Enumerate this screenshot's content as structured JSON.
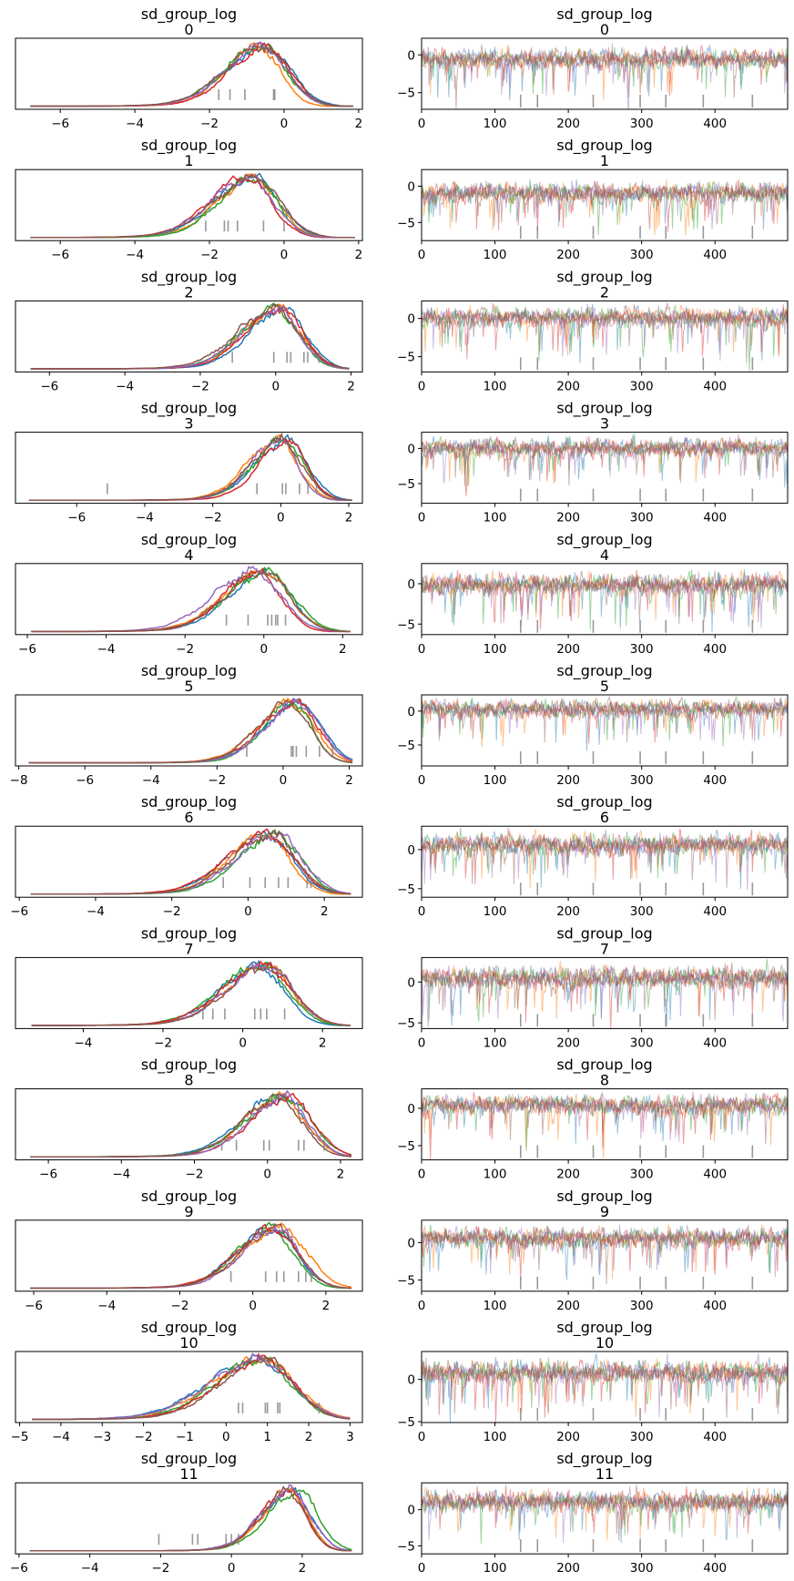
{
  "figure": {
    "colors": [
      "#1f77b4",
      "#ff7f0e",
      "#2ca02c",
      "#d62728",
      "#9467bd",
      "#8c564b"
    ],
    "rug_color": "#7f7f7f"
  },
  "chart_data": [
    {
      "type": "line",
      "kind": "density",
      "title": "sd_group_log",
      "subtitle": "0",
      "xlim": [
        -7.2,
        2.1
      ],
      "xticks": [
        -6,
        -4,
        -2,
        0,
        2
      ],
      "ylim": [
        0,
        1
      ],
      "mode": -0.55,
      "spread": 0.75,
      "left_tail": -6.8,
      "right_tail": 1.85,
      "rug": [
        -1.75,
        -1.45,
        -1.05,
        -0.25,
        -0.28
      ],
      "series_count": 6
    },
    {
      "type": "line",
      "kind": "trace",
      "title": "sd_group_log",
      "subtitle": "0",
      "xlim": [
        0,
        499
      ],
      "xticks": [
        0,
        100,
        200,
        300,
        400
      ],
      "ylim": [
        -7.2,
        2.2
      ],
      "yticks": [
        0,
        -5
      ],
      "center": -0.55,
      "noise": 1.0,
      "rug": [
        135,
        158,
        234,
        298,
        333,
        384,
        451
      ],
      "series_count": 6
    },
    {
      "type": "line",
      "kind": "density",
      "title": "sd_group_log",
      "subtitle": "1",
      "xlim": [
        -7.2,
        2.1
      ],
      "xticks": [
        -6,
        -4,
        -2,
        0,
        2
      ],
      "ylim": [
        0,
        1
      ],
      "mode": -0.9,
      "spread": 0.8,
      "left_tail": -6.8,
      "right_tail": 1.9,
      "rug": [
        -2.1,
        -1.6,
        -1.5,
        -1.25,
        -0.55,
        0.0
      ],
      "series_count": 6
    },
    {
      "type": "line",
      "kind": "trace",
      "title": "sd_group_log",
      "subtitle": "1",
      "xlim": [
        0,
        499
      ],
      "xticks": [
        0,
        100,
        200,
        300,
        400
      ],
      "ylim": [
        -7.5,
        2.3
      ],
      "yticks": [
        0,
        -5
      ],
      "center": -0.9,
      "noise": 1.05,
      "rug": [
        135,
        158,
        234,
        298,
        333,
        384,
        451
      ],
      "series_count": 6
    },
    {
      "type": "line",
      "kind": "density",
      "title": "sd_group_log",
      "subtitle": "2",
      "xlim": [
        -6.9,
        2.3
      ],
      "xticks": [
        -6,
        -4,
        -2,
        0,
        2
      ],
      "ylim": [
        0,
        1
      ],
      "mode": 0.1,
      "spread": 0.75,
      "left_tail": -6.5,
      "right_tail": 1.95,
      "rug": [
        -1.15,
        -0.05,
        0.3,
        0.4,
        0.75,
        0.85,
        1.15
      ],
      "series_count": 6
    },
    {
      "type": "line",
      "kind": "trace",
      "title": "sd_group_log",
      "subtitle": "2",
      "xlim": [
        0,
        499
      ],
      "xticks": [
        0,
        100,
        200,
        300,
        400
      ],
      "ylim": [
        -7.0,
        2.3
      ],
      "yticks": [
        0,
        -5
      ],
      "center": 0.1,
      "noise": 1.0,
      "rug": [
        135,
        158,
        234,
        298,
        333,
        384,
        451
      ],
      "series_count": 6
    },
    {
      "type": "line",
      "kind": "density",
      "title": "sd_group_log",
      "subtitle": "3",
      "xlim": [
        -7.8,
        2.4
      ],
      "xticks": [
        -6,
        -4,
        -2,
        0,
        2
      ],
      "ylim": [
        0,
        1
      ],
      "mode": 0.05,
      "spread": 0.7,
      "left_tail": -7.4,
      "right_tail": 2.1,
      "rug": [
        -5.1,
        -0.7,
        0.05,
        0.15,
        0.55,
        0.8,
        1.05
      ],
      "series_count": 6
    },
    {
      "type": "line",
      "kind": "trace",
      "title": "sd_group_log",
      "subtitle": "3",
      "xlim": [
        0,
        499
      ],
      "xticks": [
        0,
        100,
        200,
        300,
        400
      ],
      "ylim": [
        -7.8,
        2.3
      ],
      "yticks": [
        0,
        -5
      ],
      "center": 0.05,
      "noise": 1.0,
      "rug": [
        135,
        158,
        234,
        298,
        333,
        384,
        451
      ],
      "series_count": 6
    },
    {
      "type": "line",
      "kind": "density",
      "title": "sd_group_log",
      "subtitle": "4",
      "xlim": [
        -6.3,
        2.5
      ],
      "xticks": [
        -6,
        -4,
        -2,
        0,
        2
      ],
      "ylim": [
        0,
        1
      ],
      "mode": -0.1,
      "spread": 0.75,
      "left_tail": -5.9,
      "right_tail": 2.2,
      "rug": [
        -0.95,
        -0.4,
        0.1,
        0.2,
        0.3,
        0.35,
        0.55
      ],
      "series_count": 6
    },
    {
      "type": "line",
      "kind": "trace",
      "title": "sd_group_log",
      "subtitle": "4",
      "xlim": [
        0,
        499
      ],
      "xticks": [
        0,
        100,
        200,
        300,
        400
      ],
      "ylim": [
        -6.3,
        2.5
      ],
      "yticks": [
        0,
        -5
      ],
      "center": -0.1,
      "noise": 1.0,
      "rug": [
        135,
        158,
        234,
        298,
        333,
        384,
        451
      ],
      "series_count": 6
    },
    {
      "type": "line",
      "kind": "density",
      "title": "sd_group_log",
      "subtitle": "5",
      "xlim": [
        -8.1,
        2.4
      ],
      "xticks": [
        -8,
        -6,
        -4,
        -2,
        0,
        2
      ],
      "ylim": [
        0,
        1
      ],
      "mode": 0.3,
      "spread": 0.75,
      "left_tail": -7.7,
      "right_tail": 2.1,
      "rug": [
        -1.1,
        0.25,
        0.3,
        0.4,
        0.7,
        1.1,
        1.5
      ],
      "series_count": 6
    },
    {
      "type": "line",
      "kind": "trace",
      "title": "sd_group_log",
      "subtitle": "5",
      "xlim": [
        0,
        499
      ],
      "xticks": [
        0,
        100,
        200,
        300,
        400
      ],
      "ylim": [
        -8.1,
        2.4
      ],
      "yticks": [
        0,
        -5
      ],
      "center": 0.3,
      "noise": 1.0,
      "rug": [
        135,
        158,
        234,
        298,
        333,
        384,
        451
      ],
      "series_count": 6
    },
    {
      "type": "line",
      "kind": "density",
      "title": "sd_group_log",
      "subtitle": "6",
      "xlim": [
        -6.1,
        3.0
      ],
      "xticks": [
        -6,
        -4,
        -2,
        0,
        2
      ],
      "ylim": [
        0,
        1
      ],
      "mode": 0.6,
      "spread": 0.8,
      "left_tail": -5.7,
      "right_tail": 2.7,
      "rug": [
        -0.65,
        0.05,
        0.45,
        0.8,
        1.05,
        1.55,
        1.65
      ],
      "series_count": 6
    },
    {
      "type": "line",
      "kind": "trace",
      "title": "sd_group_log",
      "subtitle": "6",
      "xlim": [
        0,
        499
      ],
      "xticks": [
        0,
        100,
        200,
        300,
        400
      ],
      "ylim": [
        -6.1,
        3.0
      ],
      "yticks": [
        0,
        -5
      ],
      "center": 0.6,
      "noise": 1.0,
      "rug": [
        135,
        158,
        234,
        298,
        333,
        384,
        451
      ],
      "series_count": 6
    },
    {
      "type": "line",
      "kind": "density",
      "title": "sd_group_log",
      "subtitle": "7",
      "xlim": [
        -5.7,
        3.0
      ],
      "xticks": [
        -4,
        -2,
        0,
        2
      ],
      "ylim": [
        0,
        1
      ],
      "mode": 0.5,
      "spread": 0.8,
      "left_tail": -5.3,
      "right_tail": 2.7,
      "rug": [
        -1.0,
        -0.75,
        -0.45,
        0.3,
        0.45,
        0.6,
        1.05
      ],
      "series_count": 6
    },
    {
      "type": "line",
      "kind": "trace",
      "title": "sd_group_log",
      "subtitle": "7",
      "xlim": [
        0,
        499
      ],
      "xticks": [
        0,
        100,
        200,
        300,
        400
      ],
      "ylim": [
        -5.7,
        3.0
      ],
      "yticks": [
        0,
        -5
      ],
      "center": 0.5,
      "noise": 1.0,
      "rug": [
        135,
        158,
        234,
        298,
        333,
        384,
        451
      ],
      "series_count": 6
    },
    {
      "type": "line",
      "kind": "density",
      "title": "sd_group_log",
      "subtitle": "8",
      "xlim": [
        -6.9,
        2.6
      ],
      "xticks": [
        -6,
        -4,
        -2,
        0,
        2
      ],
      "ylim": [
        0,
        1
      ],
      "mode": 0.4,
      "spread": 0.8,
      "left_tail": -6.5,
      "right_tail": 2.3,
      "rug": [
        -1.25,
        -0.85,
        -0.1,
        0.05,
        0.85,
        1.0,
        1.55
      ],
      "series_count": 6
    },
    {
      "type": "line",
      "kind": "trace",
      "title": "sd_group_log",
      "subtitle": "8",
      "xlim": [
        0,
        499
      ],
      "xticks": [
        0,
        100,
        200,
        300,
        400
      ],
      "ylim": [
        -6.9,
        2.6
      ],
      "yticks": [
        0,
        -5
      ],
      "center": 0.4,
      "noise": 1.0,
      "rug": [
        135,
        158,
        234,
        298,
        333,
        384,
        451
      ],
      "series_count": 6
    },
    {
      "type": "line",
      "kind": "density",
      "title": "sd_group_log",
      "subtitle": "9",
      "xlim": [
        -6.5,
        3.0
      ],
      "xticks": [
        -6,
        -4,
        -2,
        0,
        2
      ],
      "ylim": [
        0,
        1
      ],
      "mode": 0.6,
      "spread": 0.8,
      "left_tail": -6.1,
      "right_tail": 2.7,
      "rug": [
        -0.6,
        0.35,
        0.65,
        0.85,
        1.25,
        1.45,
        1.6
      ],
      "series_count": 6
    },
    {
      "type": "line",
      "kind": "trace",
      "title": "sd_group_log",
      "subtitle": "9",
      "xlim": [
        0,
        499
      ],
      "xticks": [
        0,
        100,
        200,
        300,
        400
      ],
      "ylim": [
        -6.5,
        3.0
      ],
      "yticks": [
        0,
        -5
      ],
      "center": 0.6,
      "noise": 1.0,
      "rug": [
        135,
        158,
        234,
        298,
        333,
        384,
        451
      ],
      "series_count": 6
    },
    {
      "type": "line",
      "kind": "density",
      "title": "sd_group_log",
      "subtitle": "10",
      "xlim": [
        -5.1,
        3.3
      ],
      "xticks": [
        -5,
        -4,
        -3,
        -2,
        -1,
        0,
        1,
        2,
        3
      ],
      "ylim": [
        0,
        1
      ],
      "mode": 0.8,
      "spread": 0.9,
      "left_tail": -4.7,
      "right_tail": 3.0,
      "rug": [
        0.3,
        0.4,
        0.95,
        1.0,
        1.25,
        1.3,
        2.25
      ],
      "series_count": 6
    },
    {
      "type": "line",
      "kind": "trace",
      "title": "sd_group_log",
      "subtitle": "10",
      "xlim": [
        0,
        499
      ],
      "xticks": [
        0,
        100,
        200,
        300,
        400
      ],
      "ylim": [
        -5.1,
        3.3
      ],
      "yticks": [
        0,
        -5
      ],
      "center": 0.8,
      "noise": 1.0,
      "rug": [
        135,
        158,
        234,
        298,
        333,
        384,
        451
      ],
      "series_count": 6
    },
    {
      "type": "line",
      "kind": "density",
      "title": "sd_group_log",
      "subtitle": "11",
      "xlim": [
        -6.1,
        3.7
      ],
      "xticks": [
        -6,
        -4,
        -2,
        0,
        2
      ],
      "ylim": [
        0,
        1
      ],
      "mode": 1.7,
      "spread": 0.65,
      "left_tail": -5.7,
      "right_tail": 3.4,
      "rug": [
        -2.05,
        -1.1,
        -0.95,
        -0.15,
        0.0,
        0.2
      ],
      "series_count": 6
    },
    {
      "type": "line",
      "kind": "trace",
      "title": "sd_group_log",
      "subtitle": "11",
      "xlim": [
        0,
        499
      ],
      "xticks": [
        0,
        100,
        200,
        300,
        400
      ],
      "ylim": [
        -6.1,
        3.7
      ],
      "yticks": [
        0,
        -5
      ],
      "center": 1.1,
      "noise": 1.1,
      "rug": [
        135,
        158,
        234,
        298,
        333,
        384,
        451
      ],
      "series_count": 6
    }
  ]
}
